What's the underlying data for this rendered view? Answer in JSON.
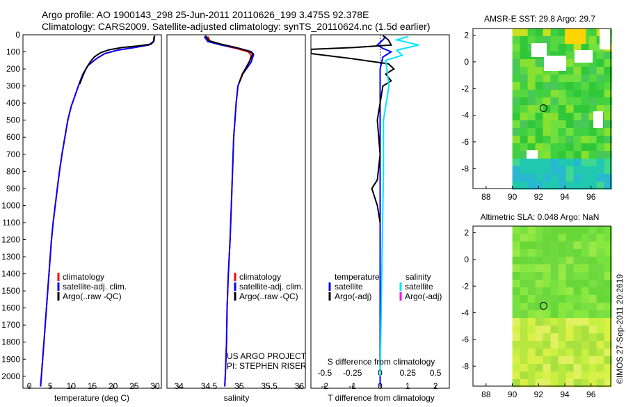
{
  "header": {
    "line1": "Argo profile: AO 1900143_298 25-Jun-2011 20110626_199 3.475S 92.378E",
    "line2": "Climatology: CARS2009. Satellite-adjusted climatology: synTS_20110624.nc (1.5d earlier)"
  },
  "side_label": "©IMOS 27-Sep-2011 20:2619",
  "credits": {
    "line1": "US ARGO PROJECT",
    "line2": "PI: STEPHEN RISER"
  },
  "colors": {
    "climatology": "#ff0000",
    "satellite": "#0000ff",
    "argo": "#000000",
    "sal_satellite": "#00e5ff",
    "sal_argo": "#ff00ff"
  },
  "chart_data": [
    {
      "type": "line",
      "name": "temperature-profile",
      "xlabel": "temperature (deg C)",
      "ylabel": "",
      "xlim": [
        -1.5,
        31.5
      ],
      "ylim": [
        2070,
        0
      ],
      "xticks": [
        0,
        5,
        10,
        15,
        20,
        25,
        30
      ],
      "yticks": [
        0,
        100,
        200,
        300,
        400,
        500,
        600,
        700,
        800,
        900,
        1000,
        1100,
        1200,
        1300,
        1400,
        1500,
        1600,
        1700,
        1800,
        1900,
        2000
      ],
      "legend": [
        "climatology",
        "satellite-adj. clim.",
        "Argo(..raw -QC)"
      ],
      "series": [
        {
          "name": "climatology",
          "color": "#ff0000",
          "points": [
            [
              29.8,
              10
            ],
            [
              29.6,
              40
            ],
            [
              28.5,
              60
            ],
            [
              25,
              75
            ],
            [
              21,
              90
            ],
            [
              18,
              110
            ],
            [
              16,
              140
            ],
            [
              14,
              180
            ],
            [
              12.8,
              230
            ],
            [
              12,
              280
            ],
            [
              11,
              350
            ],
            [
              10,
              420
            ],
            [
              9.2,
              500
            ],
            [
              8.5,
              600
            ],
            [
              7.8,
              700
            ],
            [
              7.2,
              800
            ],
            [
              6.7,
              900
            ],
            [
              6.2,
              1000
            ],
            [
              5.7,
              1100
            ],
            [
              5.3,
              1200
            ],
            [
              5,
              1300
            ],
            [
              4.7,
              1400
            ],
            [
              4.4,
              1500
            ],
            [
              4.1,
              1600
            ],
            [
              3.8,
              1700
            ],
            [
              3.5,
              1800
            ],
            [
              3.2,
              1900
            ],
            [
              2.9,
              2000
            ],
            [
              2.7,
              2060
            ]
          ]
        },
        {
          "name": "satellite-adj. clim.",
          "color": "#0000ff",
          "points": [
            [
              29.8,
              10
            ],
            [
              29.6,
              40
            ],
            [
              28.5,
              60
            ],
            [
              25,
              75
            ],
            [
              21,
              90
            ],
            [
              18,
              110
            ],
            [
              16,
              140
            ],
            [
              14,
              180
            ],
            [
              12.8,
              230
            ],
            [
              12,
              280
            ],
            [
              11,
              350
            ],
            [
              10,
              420
            ],
            [
              9.2,
              500
            ],
            [
              8.5,
              600
            ],
            [
              7.8,
              700
            ],
            [
              7.2,
              800
            ],
            [
              6.7,
              900
            ],
            [
              6.2,
              1000
            ],
            [
              5.7,
              1100
            ],
            [
              5.3,
              1200
            ],
            [
              5,
              1300
            ],
            [
              4.7,
              1400
            ],
            [
              4.4,
              1500
            ],
            [
              4.1,
              1600
            ],
            [
              3.8,
              1700
            ],
            [
              3.5,
              1800
            ],
            [
              3.2,
              1900
            ],
            [
              2.9,
              2000
            ],
            [
              2.7,
              2060
            ]
          ]
        },
        {
          "name": "Argo(..raw -QC)",
          "color": "#000000",
          "points": [
            [
              29.9,
              5
            ],
            [
              29.7,
              40
            ],
            [
              29,
              55
            ],
            [
              26,
              65
            ],
            [
              22,
              75
            ],
            [
              19,
              88
            ],
            [
              17,
              105
            ],
            [
              15.5,
              130
            ],
            [
              14.5,
              160
            ],
            [
              13.5,
              200
            ],
            [
              12.8,
              240
            ],
            [
              12,
              290
            ]
          ]
        }
      ]
    },
    {
      "type": "line",
      "name": "salinity-profile",
      "xlabel": "salinity",
      "xlim": [
        33.8,
        36.1
      ],
      "ylim": [
        2070,
        0
      ],
      "xticks": [
        34,
        34.5,
        35,
        35.5,
        36
      ],
      "legend": [
        "climatology",
        "satellite-adj. clim.",
        "Argo(..raw -QC)"
      ],
      "series": [
        {
          "name": "climatology",
          "color": "#ff0000",
          "points": [
            [
              34.48,
              10
            ],
            [
              34.52,
              40
            ],
            [
              34.7,
              60
            ],
            [
              34.95,
              80
            ],
            [
              35.15,
              100
            ],
            [
              35.2,
              120
            ],
            [
              35.17,
              160
            ],
            [
              35.05,
              230
            ],
            [
              34.98,
              300
            ],
            [
              34.95,
              400
            ],
            [
              34.93,
              500
            ],
            [
              34.91,
              600
            ],
            [
              34.89,
              800
            ],
            [
              34.87,
              1000
            ],
            [
              34.85,
              1200
            ],
            [
              34.82,
              1400
            ],
            [
              34.8,
              1600
            ],
            [
              34.79,
              1800
            ],
            [
              34.77,
              2000
            ],
            [
              34.76,
              2060
            ]
          ]
        },
        {
          "name": "satellite-adj. clim.",
          "color": "#0000ff",
          "points": [
            [
              34.42,
              10
            ],
            [
              34.48,
              40
            ],
            [
              34.7,
              60
            ],
            [
              35,
              80
            ],
            [
              35.2,
              98
            ],
            [
              35.24,
              115
            ],
            [
              35.2,
              160
            ],
            [
              35.06,
              230
            ],
            [
              34.98,
              300
            ],
            [
              34.95,
              400
            ],
            [
              34.93,
              500
            ],
            [
              34.91,
              600
            ],
            [
              34.89,
              800
            ],
            [
              34.87,
              1000
            ],
            [
              34.85,
              1200
            ],
            [
              34.82,
              1400
            ],
            [
              34.8,
              1600
            ],
            [
              34.79,
              1800
            ],
            [
              34.77,
              2000
            ],
            [
              34.76,
              2060
            ]
          ]
        },
        {
          "name": "Argo(..raw -QC)",
          "color": "#000000",
          "points": [
            [
              34.44,
              5
            ],
            [
              34.5,
              35
            ],
            [
              34.7,
              55
            ],
            [
              34.95,
              75
            ],
            [
              35.15,
              95
            ],
            [
              35.23,
              110
            ],
            [
              35.18,
              150
            ],
            [
              35.07,
              220
            ],
            [
              35.0,
              280
            ]
          ]
        }
      ]
    },
    {
      "type": "line",
      "name": "difference-profile",
      "xlabel_top": "S difference from climatology",
      "xlabel": "T difference from climatology",
      "t_xlim": [
        -2.5,
        2.5
      ],
      "t_xticks": [
        -2,
        -1,
        0,
        1,
        2
      ],
      "s_ticks": [
        -0.5,
        -0.25,
        0,
        0.25,
        0.5
      ],
      "s_tick_labels": [
        "-0.5",
        "-0.25",
        "0",
        "0.25",
        "0.5"
      ],
      "ylim": [
        2070,
        0
      ],
      "legend": {
        "temperature": "temperature",
        "salinity": "salinity",
        "t_sat": "satellite",
        "t_argo": "Argo(-adj)",
        "s_sat": "satellite",
        "s_argo": "Argo(-adj)"
      },
      "series": [
        {
          "name": "T satellite",
          "color": "#0000ff",
          "points": [
            [
              0.2,
              10
            ],
            [
              0.1,
              30
            ],
            [
              -0.1,
              60
            ],
            [
              0.1,
              80
            ],
            [
              0.4,
              100
            ],
            [
              0.1,
              130
            ],
            [
              0,
              200
            ],
            [
              0,
              400
            ],
            [
              0,
              800
            ],
            [
              0,
              1200
            ],
            [
              0,
              1600
            ],
            [
              0,
              2060
            ]
          ]
        },
        {
          "name": "T Argo(-adj)",
          "color": "#000000",
          "points": [
            [
              0.1,
              5
            ],
            [
              0.3,
              30
            ],
            [
              0.4,
              60
            ],
            [
              -1,
              75
            ],
            [
              -2.5,
              85
            ],
            [
              -2.5,
              110
            ],
            [
              -1,
              140
            ],
            [
              0.3,
              170
            ],
            [
              0.5,
              200
            ],
            [
              0.2,
              230
            ],
            [
              0.4,
              270
            ],
            [
              0.1,
              300
            ],
            [
              -0.1,
              500
            ],
            [
              0,
              700
            ],
            [
              -0.1,
              850
            ],
            [
              -0.3,
              900
            ],
            [
              -0.2,
              950
            ],
            [
              -0.1,
              1000
            ],
            [
              0,
              1100
            ]
          ]
        },
        {
          "name": "S satellite",
          "color": "#00e5ff",
          "points": [
            [
              0.25,
              10
            ],
            [
              0.15,
              30
            ],
            [
              0.35,
              60
            ],
            [
              0.15,
              90
            ],
            [
              0.2,
              120
            ],
            [
              0.05,
              150
            ],
            [
              0.08,
              300
            ],
            [
              0.03,
              500
            ],
            [
              0.03,
              800
            ],
            [
              0.02,
              1200
            ],
            [
              0.01,
              1600
            ],
            [
              0,
              2000
            ]
          ]
        }
      ]
    },
    {
      "type": "heatmap",
      "name": "amsre-sst-map",
      "title": "AMSR-E SST: 29.8 Argo: 29.7",
      "xticks": [
        88,
        90,
        92,
        94,
        96
      ],
      "yticks": [
        2,
        0,
        -2,
        -4,
        -6,
        -8
      ],
      "xlim": [
        87,
        97.5
      ],
      "ylim": [
        -9.5,
        2.5
      ],
      "data_xlim": [
        90,
        97.5
      ],
      "marker": {
        "lon": 92.378,
        "lat": -3.475
      }
    },
    {
      "type": "heatmap",
      "name": "altimetric-sla-map",
      "title": "Altimetric SLA: 0.048 Argo: NaN",
      "xticks": [
        88,
        90,
        92,
        94,
        96
      ],
      "yticks": [
        2,
        0,
        -2,
        -4,
        -6,
        -8
      ],
      "xlim": [
        87,
        97.5
      ],
      "ylim": [
        -9.5,
        2.5
      ],
      "data_xlim": [
        90,
        97.5
      ],
      "marker": {
        "lon": 92.378,
        "lat": -3.475
      }
    }
  ]
}
